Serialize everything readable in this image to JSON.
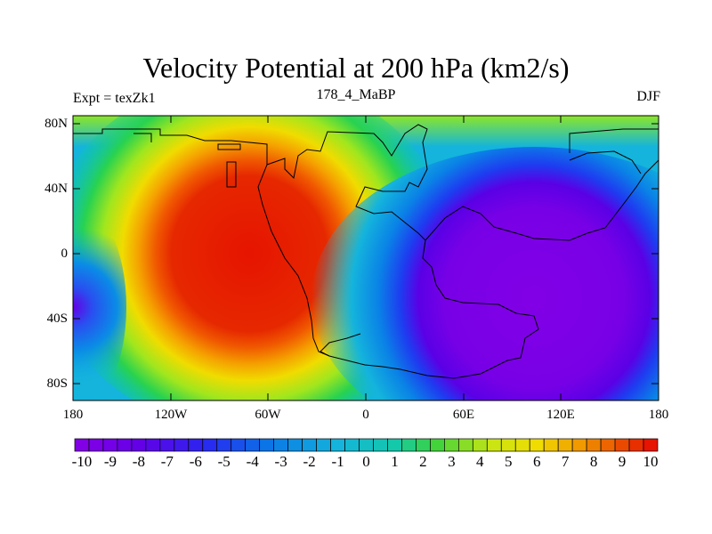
{
  "title": "Velocity Potential at 200 hPa (km2/s)",
  "subtitle_left": "Expt = texZk1",
  "subtitle_center": "178_4_MaBP",
  "subtitle_right": "DJF",
  "y_ticks": [
    "80N",
    "40N",
    "0",
    "40S",
    "80S"
  ],
  "x_ticks": [
    "180",
    "120W",
    "60W",
    "0",
    "60E",
    "120E",
    "180"
  ],
  "colorbar_ticks": [
    "-10",
    "-9",
    "-8",
    "-7",
    "-6",
    "-5",
    "-4",
    "-3",
    "-2",
    "-1",
    "0",
    "1",
    "2",
    "3",
    "4",
    "5",
    "6",
    "7",
    "8",
    "9",
    "10"
  ],
  "chart_data": {
    "type": "heatmap",
    "title": "Velocity Potential at 200 hPa (km2/s)",
    "variable": "velocity potential",
    "units": "km2/s",
    "level": "200 hPa",
    "season": "DJF",
    "x_range": [
      -180,
      180
    ],
    "y_range": [
      -90,
      90
    ],
    "color_range": [
      -10,
      10
    ],
    "contour_interval": 0.5,
    "features": [
      {
        "name": "maximum",
        "value": 10,
        "lon": -40,
        "lat": 20
      },
      {
        "name": "minimum",
        "value": -10,
        "lon": 130,
        "lat": -10
      }
    ]
  }
}
